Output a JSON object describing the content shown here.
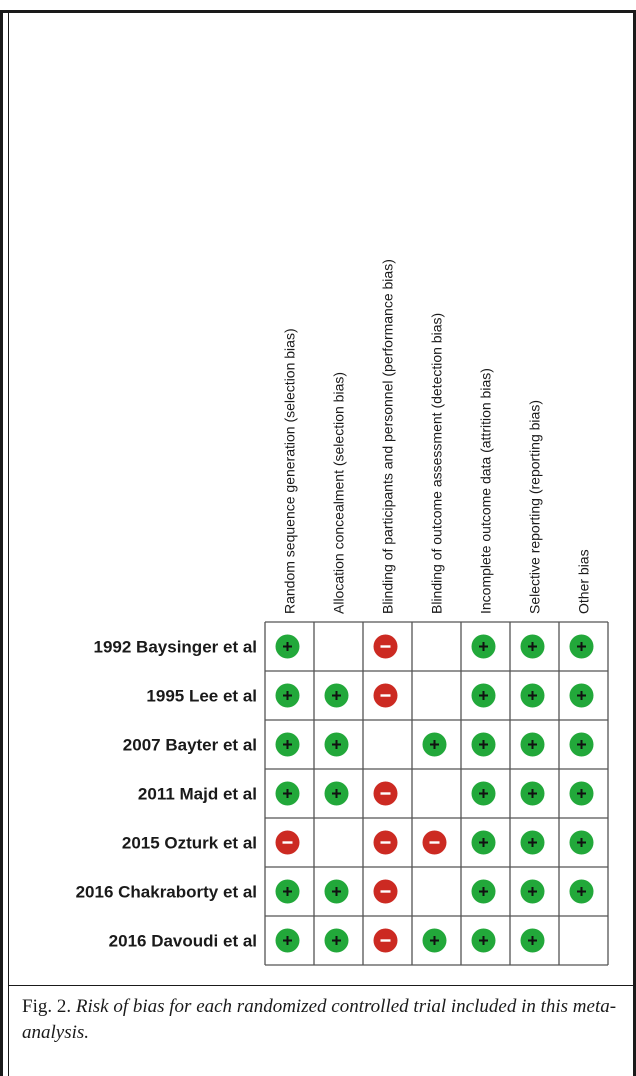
{
  "chart_data": {
    "type": "table",
    "columns": [
      "Random sequence generation (selection bias)",
      "Allocation concealment (selection bias)",
      "Blinding of participants and personnel (performance bias)",
      "Blinding of outcome assessment (detection bias)",
      "Incomplete outcome data (attrition bias)",
      "Selective reporting (reporting bias)",
      "Other bias"
    ],
    "rows": [
      "1992 Baysinger et al",
      "1995 Lee et al",
      "2007 Bayter et al",
      "2011 Majd et al",
      "2015 Ozturk et al",
      "2016 Chakraborty et al",
      "2016 Davoudi et al"
    ],
    "values": [
      [
        "+",
        "",
        "-",
        "",
        "+",
        "+",
        "+"
      ],
      [
        "+",
        "+",
        "-",
        "",
        "+",
        "+",
        "+"
      ],
      [
        "+",
        "+",
        "",
        "+",
        "+",
        "+",
        "+"
      ],
      [
        "+",
        "+",
        "-",
        "",
        "+",
        "+",
        "+"
      ],
      [
        "-",
        "",
        "-",
        "-",
        "+",
        "+",
        "+"
      ],
      [
        "+",
        "+",
        "-",
        "",
        "+",
        "+",
        "+"
      ],
      [
        "+",
        "+",
        "-",
        "+",
        "+",
        "+",
        ""
      ]
    ],
    "colors": {
      "low_risk": "#22a83a",
      "high_risk": "#cc2a22"
    }
  },
  "caption": {
    "label": "Fig.  2.",
    "text": " Risk of bias for each randomized controlled trial included in this meta-analysis."
  }
}
